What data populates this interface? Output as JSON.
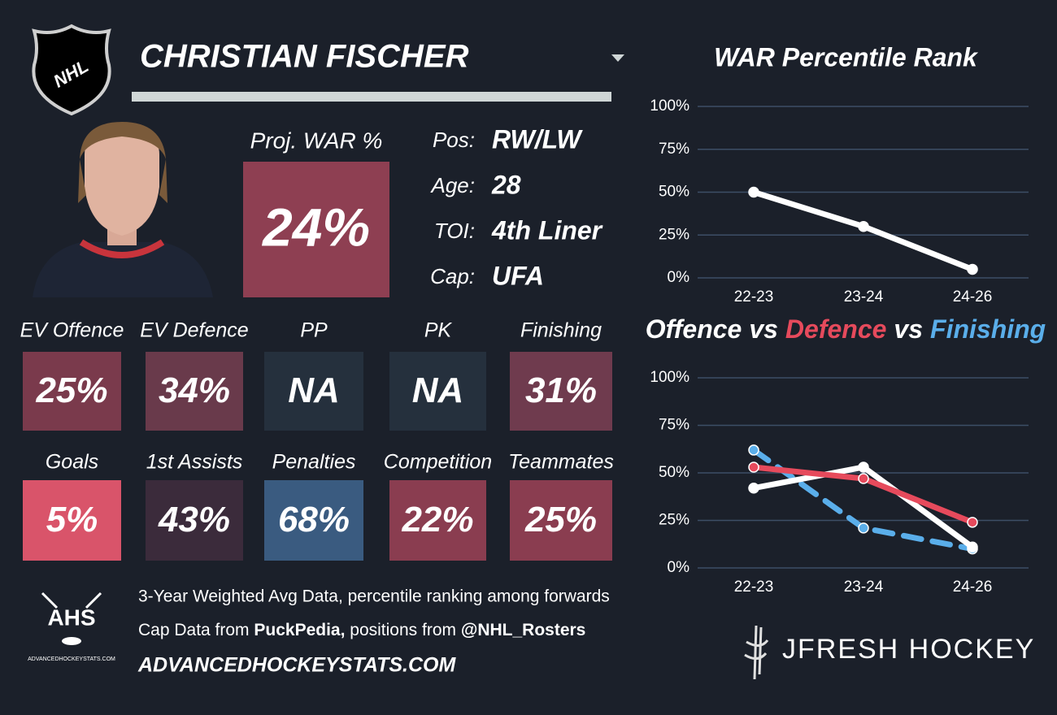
{
  "header": {
    "logo": "NHL",
    "player_name": "CHRISTIAN FISCHER"
  },
  "projection": {
    "label": "Proj. WAR %",
    "value": "24%",
    "color": "#8e3f52"
  },
  "info": [
    {
      "label": "Pos:",
      "value": "RW/LW"
    },
    {
      "label": "Age:",
      "value": "28"
    },
    {
      "label": "TOI:",
      "value": "4th Liner"
    },
    {
      "label": "Cap:",
      "value": "UFA"
    }
  ],
  "tiles": [
    [
      {
        "label": "EV Offence",
        "value": "25%",
        "color": "#7a3a4c"
      },
      {
        "label": "EV Defence",
        "value": "34%",
        "color": "#693a4b"
      },
      {
        "label": "PP",
        "value": "NA",
        "color": "#25303d"
      },
      {
        "label": "PK",
        "value": "NA",
        "color": "#25303d"
      },
      {
        "label": "Finishing",
        "value": "31%",
        "color": "#6f3b4e"
      }
    ],
    [
      {
        "label": "Goals",
        "value": "5%",
        "color": "#d9546a"
      },
      {
        "label": "1st Assists",
        "value": "43%",
        "color": "#3b2b3b"
      },
      {
        "label": "Penalties",
        "value": "68%",
        "color": "#3a5b80"
      },
      {
        "label": "Competition",
        "value": "22%",
        "color": "#8a3d50"
      },
      {
        "label": "Teammates",
        "value": "25%",
        "color": "#8a3d50"
      }
    ]
  ],
  "chart_data": [
    {
      "type": "line",
      "title": "WAR Percentile Rank",
      "categories": [
        "22-23",
        "23-24",
        "24-26"
      ],
      "series": [
        {
          "color": "#ffffff",
          "values": [
            50,
            30,
            5
          ]
        }
      ],
      "ylim": [
        0,
        100
      ],
      "yticks": [
        {
          "value": 0,
          "label": "0%"
        },
        {
          "value": 25,
          "label": "25%"
        },
        {
          "value": 50,
          "label": "50%"
        },
        {
          "value": 75,
          "label": "75%"
        },
        {
          "value": 100,
          "label": "100%"
        }
      ],
      "grid": true
    },
    {
      "type": "line",
      "title_joiner": "vs",
      "categories": [
        "22-23",
        "23-24",
        "24-26"
      ],
      "series": [
        {
          "name": "Finishing",
          "color": "#5aaeea",
          "dashed": true,
          "values": [
            62,
            21,
            10
          ]
        },
        {
          "name": "Offence",
          "color": "#ffffff",
          "values": [
            42,
            53,
            11
          ]
        },
        {
          "name": "Defence",
          "color": "#e64a5c",
          "values": [
            53,
            47,
            24
          ]
        }
      ],
      "title_order": [
        1,
        2,
        0
      ],
      "ylim": [
        0,
        100
      ],
      "yticks": [
        {
          "value": 0,
          "label": "0%"
        },
        {
          "value": 25,
          "label": "25%"
        },
        {
          "value": 50,
          "label": "50%"
        },
        {
          "value": 75,
          "label": "75%"
        },
        {
          "value": 100,
          "label": "100%"
        }
      ],
      "grid": true
    }
  ],
  "footer": {
    "logo_text": "AHS",
    "logo_caption": "ADVANCEDHOCKEYSTATS.COM",
    "note": "3-Year Weighted Avg Data, percentile ranking among forwards",
    "credit_parts": [
      "Cap Data from ",
      "PuckPedia,",
      " positions from ",
      "@NHL_Rosters"
    ],
    "url": "ADVANCEDHOCKEYSTATS.COM",
    "brand": "JFRESH HOCKEY"
  }
}
